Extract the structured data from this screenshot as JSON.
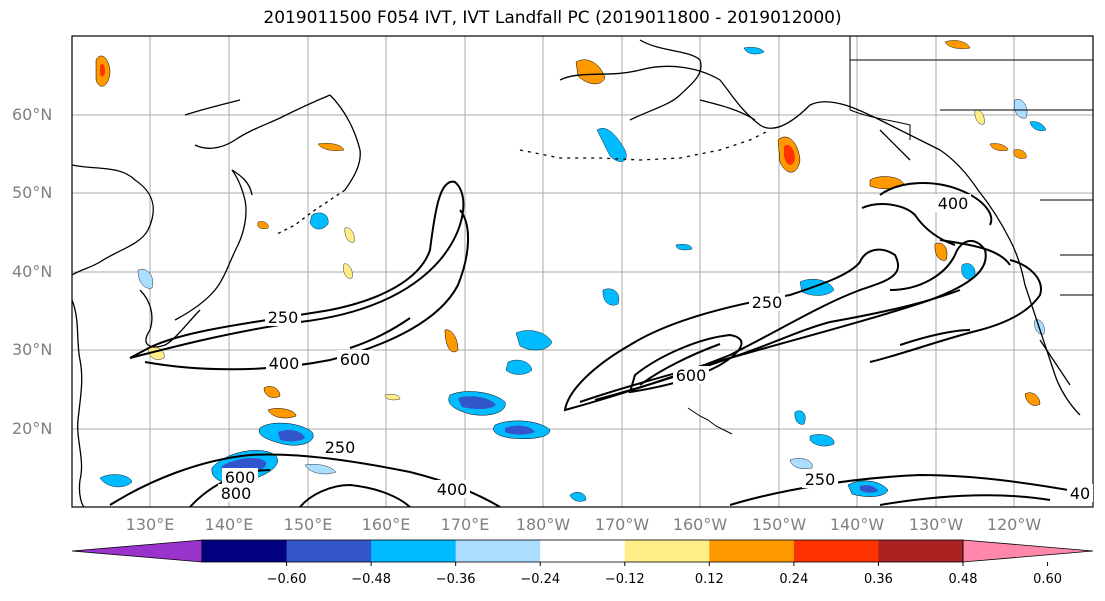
{
  "title": "2019011500 F054 IVT, IVT Landfall PC (2019011800 - 2019012000)",
  "lat_labels": [
    "60°N",
    "50°N",
    "40°N",
    "30°N",
    "20°N"
  ],
  "lon_labels": [
    "130°E",
    "140°E",
    "150°E",
    "160°E",
    "170°E",
    "180°W",
    "170°W",
    "160°W",
    "150°W",
    "140°W",
    "130°W",
    "120°W"
  ],
  "contour_labels": [
    "250",
    "400",
    "600",
    "250",
    "600",
    "250",
    "400",
    "250",
    "600",
    "800",
    "400",
    "250",
    "40"
  ],
  "colorbar": {
    "colors": [
      "#9933cc",
      "#000080",
      "#3355cc",
      "#00bbff",
      "#aaddff",
      "#ffffff",
      "#ffee88",
      "#ff9900",
      "#ff3300",
      "#aa2222",
      "#ff88aa"
    ],
    "tick_labels": [
      "−0.60",
      "−0.48",
      "−0.36",
      "−0.24",
      "−0.12",
      "0.12",
      "0.24",
      "0.36",
      "0.48",
      "0.60"
    ]
  },
  "color_names": {
    "grid": "#aaaaaa",
    "coast": "#000000",
    "contour": "#000000"
  }
}
